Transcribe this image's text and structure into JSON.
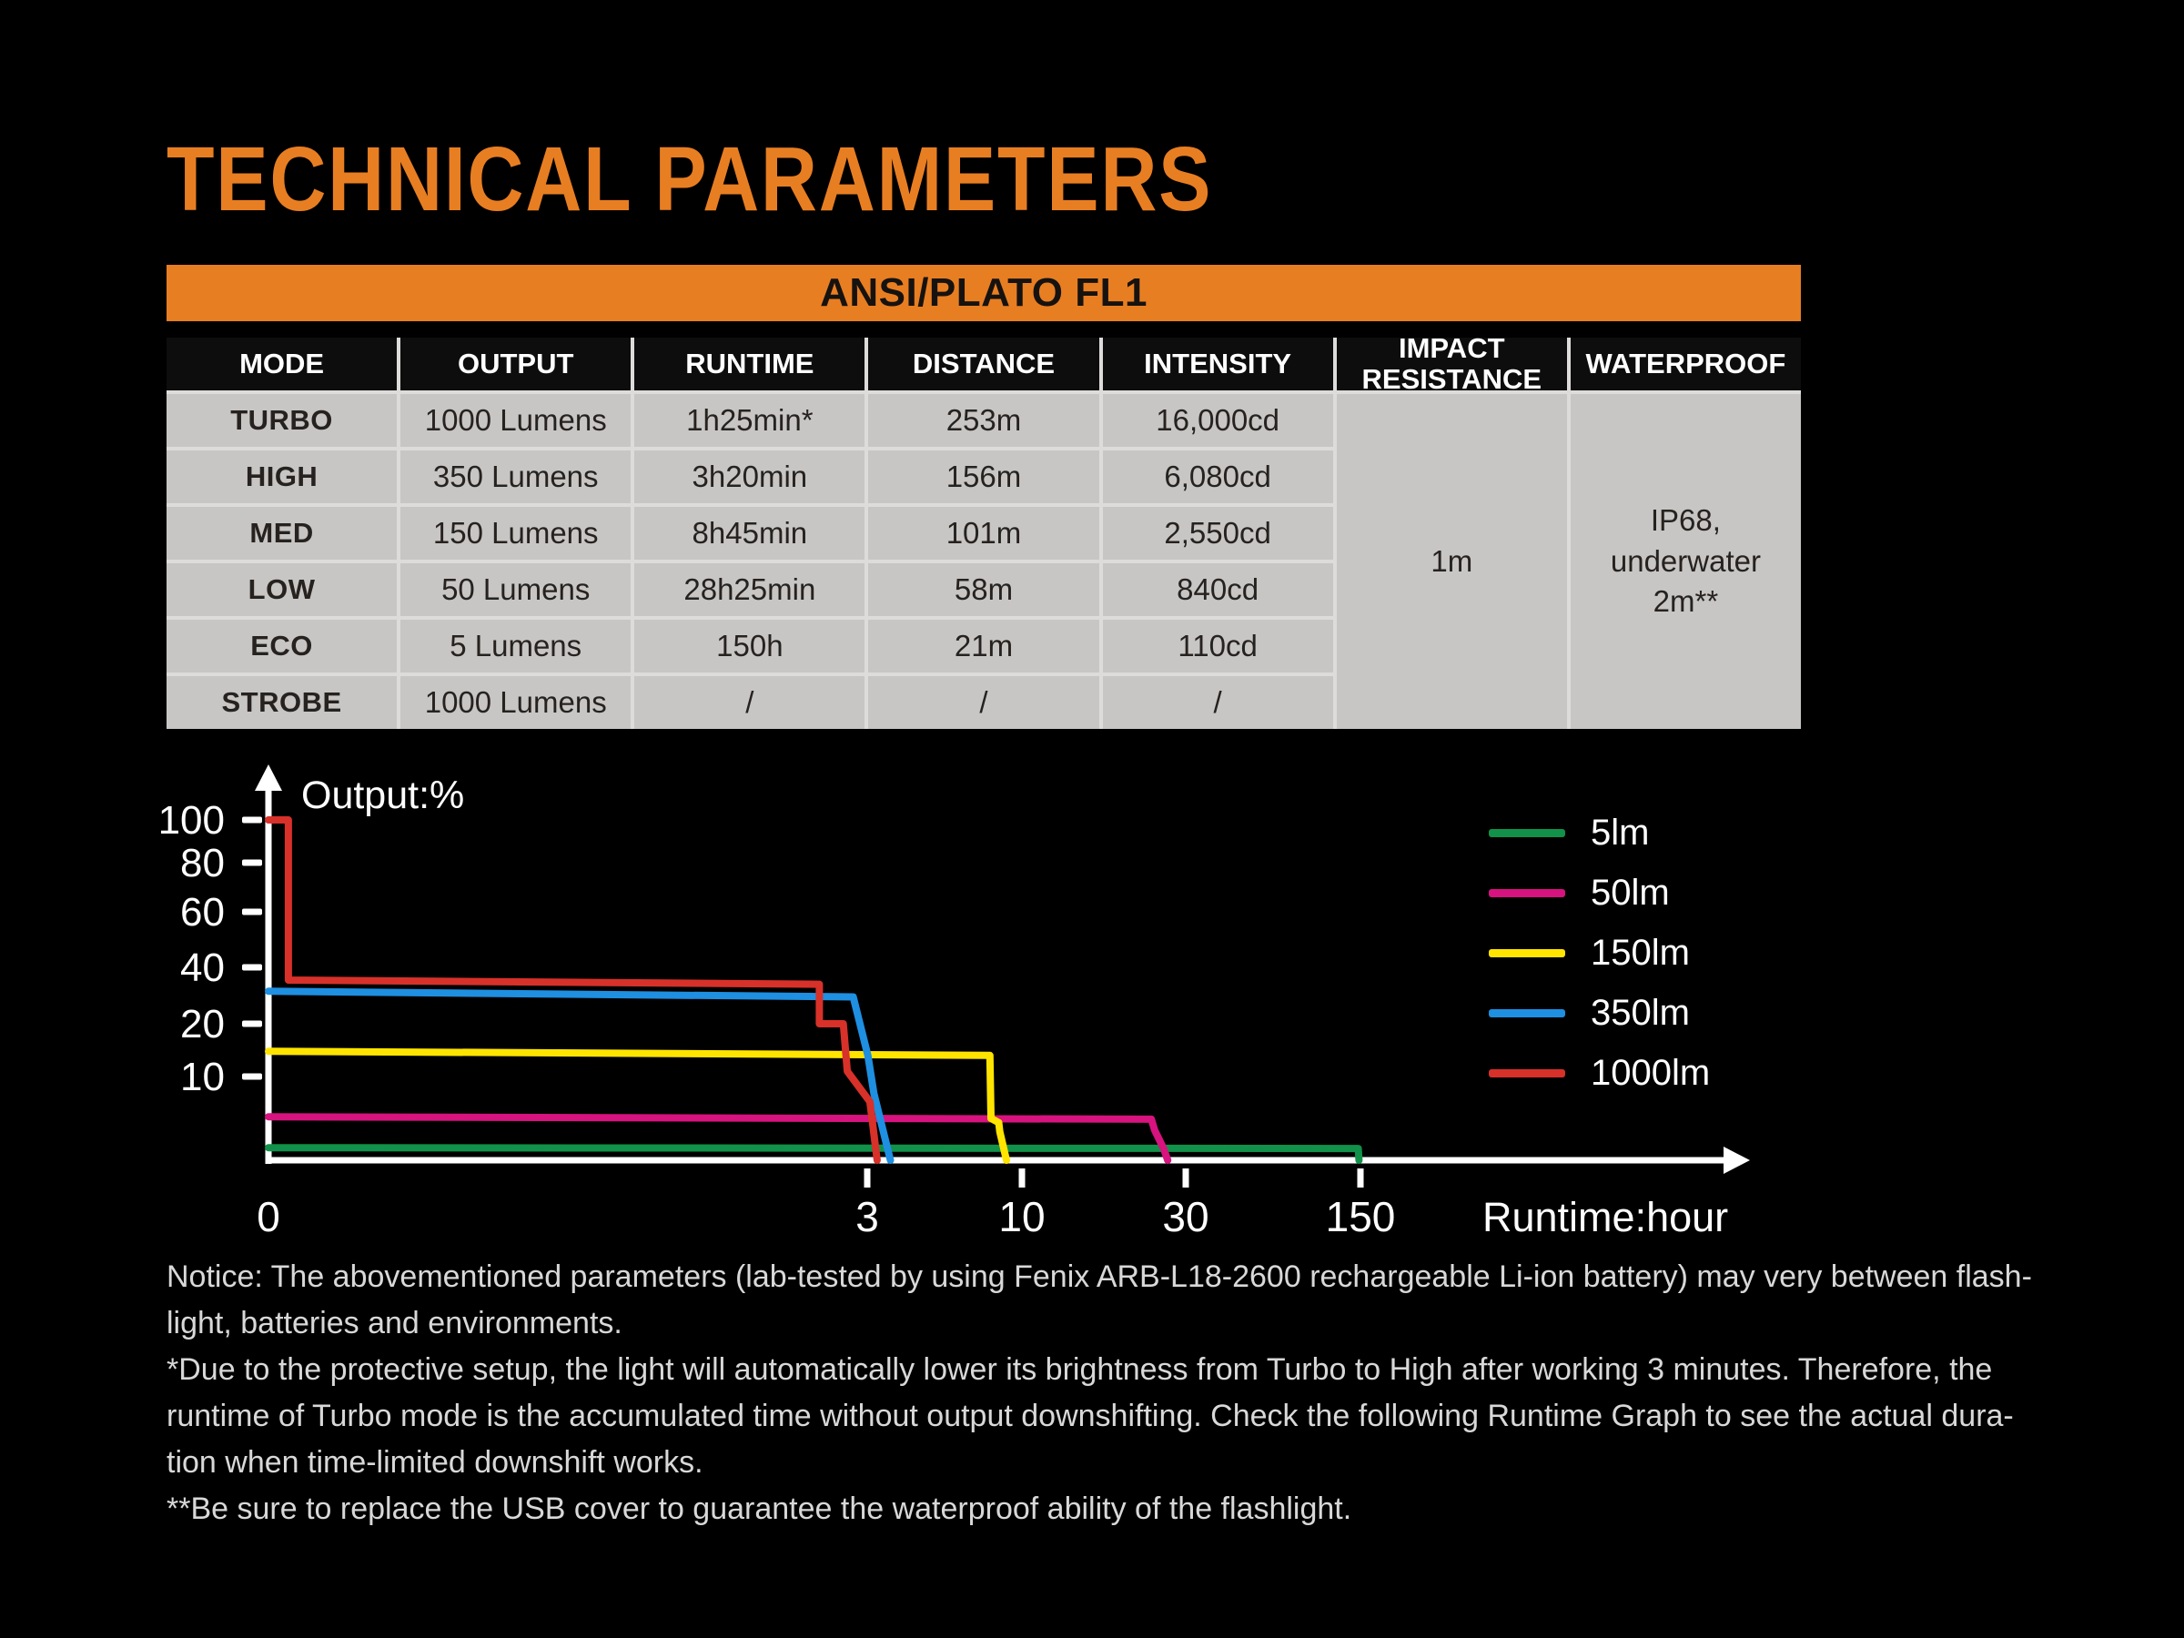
{
  "page": {
    "background": "#000000",
    "accent_orange": "#E87E22"
  },
  "title": "TECHNICAL PARAMETERS",
  "table": {
    "banner": "ANSI/PLATO FL1",
    "columns": [
      "MODE",
      "OUTPUT",
      "RUNTIME",
      "DISTANCE",
      "INTENSITY",
      "IMPACT RESISTANCE",
      "WATERPROOF"
    ],
    "rows": [
      {
        "mode": "TURBO",
        "output": "1000 Lumens",
        "runtime": "1h25min*",
        "distance": "253m",
        "intensity": "16,000cd"
      },
      {
        "mode": "HIGH",
        "output": "350 Lumens",
        "runtime": "3h20min",
        "distance": "156m",
        "intensity": "6,080cd"
      },
      {
        "mode": "MED",
        "output": "150 Lumens",
        "runtime": "8h45min",
        "distance": "101m",
        "intensity": "2,550cd"
      },
      {
        "mode": "LOW",
        "output": "50 Lumens",
        "runtime": "28h25min",
        "distance": "58m",
        "intensity": "840cd"
      },
      {
        "mode": "ECO",
        "output": "5 Lumens",
        "runtime": "150h",
        "distance": "21m",
        "intensity": "110cd"
      },
      {
        "mode": "STROBE",
        "output": "1000 Lumens",
        "runtime": "/",
        "distance": "/",
        "intensity": "/"
      }
    ],
    "impact_resistance": "1m",
    "waterproof_lines": [
      "IP68,",
      "underwater",
      "2m**"
    ]
  },
  "chart_data": {
    "type": "line",
    "title": "",
    "xlabel": "Runtime:hour",
    "ylabel": "Output:%",
    "x_ticks": [
      0,
      3,
      10,
      30,
      150
    ],
    "y_ticks": [
      100,
      80,
      60,
      40,
      20,
      10
    ],
    "x_unit": "hour",
    "y_unit": "%",
    "axis_color": "#FFFFFF",
    "grid": false,
    "legend_position": "right",
    "series": [
      {
        "name": "5lm",
        "color": "#119149",
        "points": [
          [
            0,
            1.5
          ],
          [
            148.5,
            1.4
          ],
          [
            149,
            0
          ]
        ]
      },
      {
        "name": "50lm",
        "color": "#D6137E",
        "points": [
          [
            0,
            5.2
          ],
          [
            25.8,
            4.9
          ],
          [
            26.2,
            3.6
          ],
          [
            27.3,
            1.4
          ],
          [
            27.8,
            0
          ]
        ]
      },
      {
        "name": "150lm",
        "color": "#FFE400",
        "points": [
          [
            0,
            14.8
          ],
          [
            8.55,
            14
          ],
          [
            8.6,
            5
          ],
          [
            8.95,
            4.5
          ],
          [
            9.0,
            3.4
          ],
          [
            9.3,
            0
          ]
        ]
      },
      {
        "name": "350lm",
        "color": "#1E8FE1",
        "points": [
          [
            0,
            31.5
          ],
          [
            2.93,
            29.5
          ],
          [
            3.03,
            14
          ],
          [
            3.3,
            8
          ],
          [
            4.05,
            0
          ]
        ]
      },
      {
        "name": "1000lm",
        "color": "#D7312A",
        "points": [
          [
            0,
            100
          ],
          [
            0.1,
            100
          ],
          [
            0.1,
            35.5
          ],
          [
            2.76,
            34
          ],
          [
            2.76,
            20
          ],
          [
            2.88,
            20
          ],
          [
            2.9,
            11
          ],
          [
            3.12,
            7
          ],
          [
            3.45,
            0
          ]
        ]
      }
    ]
  },
  "notice": {
    "lines": [
      "Notice: The abovementioned parameters (lab-tested by using Fenix ARB-L18-2600 rechargeable Li-ion battery) may very between flash-",
      "light, batteries and environments.",
      "*Due to the protective setup, the light will automatically lower its brightness from Turbo to High after working 3 minutes. Therefore, the",
      "runtime of Turbo mode is the accumulated time without output downshifting. Check the following Runtime Graph to see the actual dura-",
      "tion when time-limited downshift works.",
      "**Be sure to replace the USB cover to guarantee the waterproof ability of the flashlight."
    ]
  }
}
